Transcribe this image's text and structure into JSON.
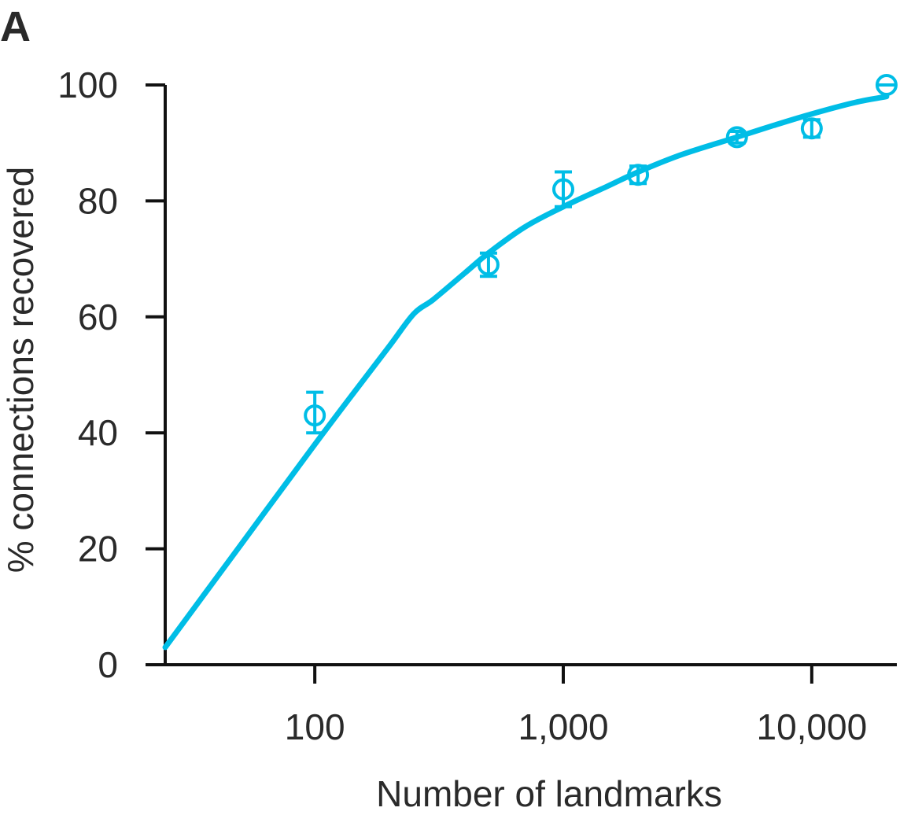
{
  "chart_data": {
    "type": "scatter",
    "panel_label": "A",
    "title": "",
    "xlabel": "Number of landmarks",
    "ylabel": "% connections recovered",
    "x_scale": "log",
    "xlim": [
      25,
      22000
    ],
    "ylim": [
      0,
      100
    ],
    "x_ticks": [
      100,
      1000,
      10000
    ],
    "x_tick_labels": [
      "100",
      "1,000",
      "10,000"
    ],
    "y_ticks": [
      0,
      20,
      40,
      60,
      80,
      100
    ],
    "y_tick_labels": [
      "0",
      "20",
      "40",
      "60",
      "80",
      "100"
    ],
    "grid": false,
    "legend": "none",
    "color": "#00bde6",
    "series": [
      {
        "kind": "points_with_error_bars",
        "x": [
          100,
          500,
          1000,
          2000,
          5000,
          10000,
          20000
        ],
        "y": [
          43,
          69,
          82,
          84.5,
          91,
          92.5,
          100
        ],
        "err_low": [
          3,
          2,
          3,
          1.5,
          1,
          1.5,
          0
        ],
        "err_high": [
          4,
          2,
          3,
          1.5,
          1,
          1.5,
          0
        ]
      },
      {
        "kind": "fit_line",
        "x": [
          25,
          50,
          100,
          150,
          200,
          250,
          300,
          400,
          500,
          700,
          1000,
          1500,
          2000,
          3000,
          5000,
          7000,
          10000,
          15000,
          20000
        ],
        "y": [
          3,
          20.5,
          38,
          48,
          55,
          60.5,
          63,
          67.5,
          71,
          75.5,
          79,
          82.5,
          85,
          88,
          91,
          93,
          95,
          97,
          98
        ]
      }
    ]
  }
}
